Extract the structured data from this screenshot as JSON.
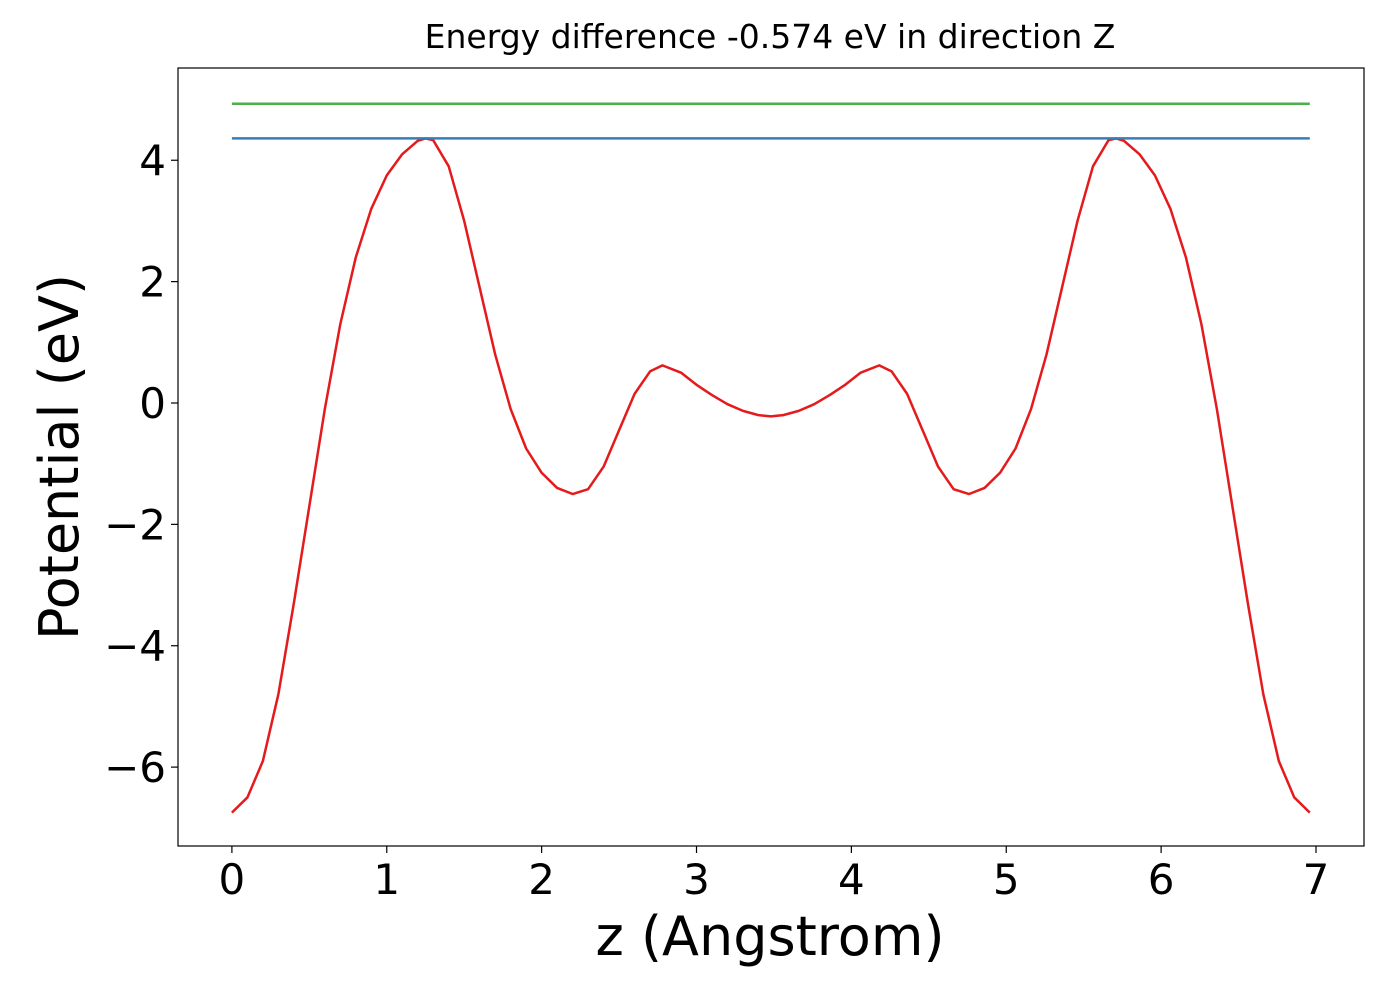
{
  "chart_data": {
    "type": "line",
    "title": "Energy difference -0.574 eV in direction Z",
    "x_label": "z (Angstrom)",
    "y_label": "Potential (eV)",
    "xlim": [
      -0.348,
      7.31
    ],
    "ylim": [
      -7.3,
      5.52
    ],
    "xticks": [
      0,
      1,
      2,
      3,
      4,
      5,
      6,
      7
    ],
    "yticks": [
      {
        "value": -6,
        "label": "−6"
      },
      {
        "value": -4,
        "label": "−4"
      },
      {
        "value": -2,
        "label": "−2"
      },
      0,
      2,
      4
    ],
    "series": [
      {
        "color": "#e41a1c",
        "x": [
          0,
          0.1,
          0.2,
          0.3,
          0.4,
          0.5,
          0.6,
          0.7,
          0.8,
          0.9,
          1.0,
          1.1,
          1.2,
          1.25,
          1.3,
          1.4,
          1.5,
          1.6,
          1.7,
          1.8,
          1.9,
          2.0,
          2.1,
          2.2,
          2.3,
          2.4,
          2.5,
          2.6,
          2.7,
          2.78,
          2.9,
          3.0,
          3.1,
          3.2,
          3.3,
          3.4,
          3.48,
          3.56,
          3.66,
          3.76,
          3.86,
          3.96,
          4.06,
          4.18,
          4.26,
          4.36,
          4.46,
          4.56,
          4.66,
          4.76,
          4.86,
          4.96,
          5.06,
          5.16,
          5.26,
          5.36,
          5.46,
          5.56,
          5.66,
          5.71,
          5.76,
          5.86,
          5.96,
          6.06,
          6.16,
          6.26,
          6.36,
          6.46,
          6.56,
          6.66,
          6.76,
          6.86,
          6.96
        ],
        "values": [
          -6.75,
          -6.5,
          -5.9,
          -4.8,
          -3.3,
          -1.7,
          -0.1,
          1.3,
          2.4,
          3.2,
          3.75,
          4.1,
          4.32,
          4.36,
          4.33,
          3.9,
          3.0,
          1.9,
          0.8,
          -0.1,
          -0.75,
          -1.15,
          -1.4,
          -1.5,
          -1.42,
          -1.05,
          -0.45,
          0.15,
          0.52,
          0.62,
          0.5,
          0.3,
          0.13,
          -0.02,
          -0.13,
          -0.2,
          -0.22,
          -0.2,
          -0.13,
          -0.02,
          0.13,
          0.3,
          0.5,
          0.62,
          0.52,
          0.15,
          -0.45,
          -1.05,
          -1.42,
          -1.5,
          -1.4,
          -1.15,
          -0.75,
          -0.1,
          0.8,
          1.9,
          3.0,
          3.9,
          4.33,
          4.36,
          4.32,
          4.1,
          3.75,
          3.2,
          2.4,
          1.3,
          -0.1,
          -1.7,
          -3.3,
          -4.8,
          -5.9,
          -6.5,
          -6.75
        ]
      },
      {
        "color": "#377eb8",
        "x": [
          0,
          6.96
        ],
        "values": [
          4.36,
          4.36
        ]
      },
      {
        "color": "#4daf4a",
        "x": [
          0,
          6.96
        ],
        "values": [
          4.93,
          4.93
        ]
      }
    ]
  }
}
